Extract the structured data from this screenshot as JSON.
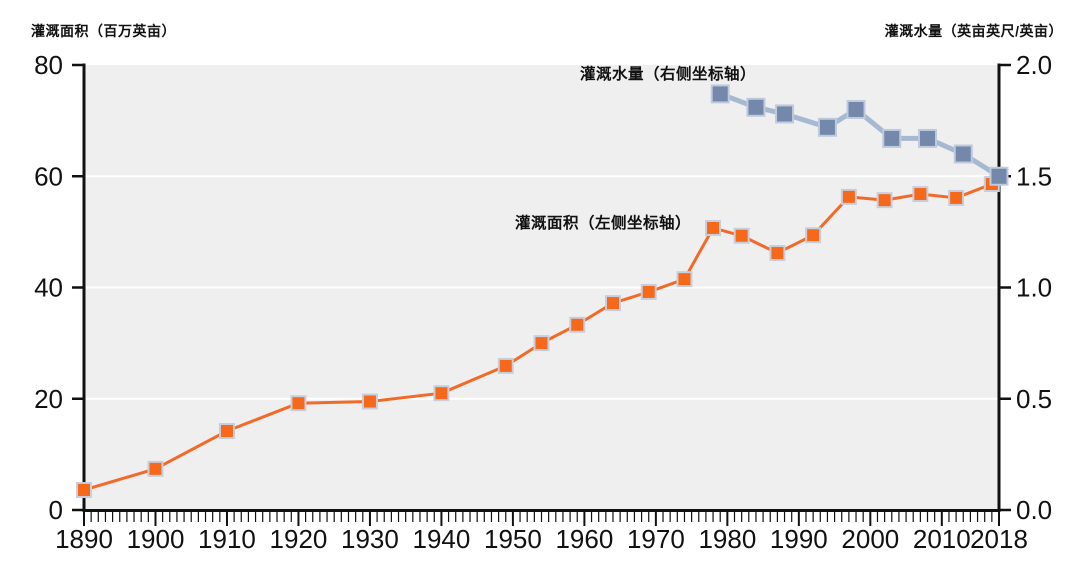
{
  "chart_data": {
    "type": "line",
    "title": "",
    "background": "#ffffff",
    "plot_background": "#efefef",
    "grid": {
      "color": "#ffffff",
      "left_values": [
        20,
        40,
        60
      ],
      "width": 2
    },
    "axis_color": "#111111",
    "tick_label_color": "#111111",
    "x_axis": {
      "range": [
        1890,
        2018
      ],
      "major_ticks": [
        1890,
        1900,
        1910,
        1920,
        1930,
        1940,
        1950,
        1960,
        1970,
        1980,
        1990,
        2000,
        2010,
        2018
      ],
      "minor_tick_step": 1
    },
    "left_axis": {
      "title": "灌溉面积（百万英亩）",
      "range": [
        0,
        80
      ],
      "ticks": [
        0,
        20,
        40,
        60,
        80
      ]
    },
    "right_axis": {
      "title": "灌溉水量（英亩英尺/英亩）",
      "range": [
        0,
        2
      ],
      "ticks": [
        "0.0",
        "0.5",
        "1.0",
        "1.5",
        "2.0"
      ]
    },
    "legend_position": "inline-annotations",
    "series": [
      {
        "name": "灌溉面积（左侧坐标轴）",
        "axis": "left",
        "line_color": "#f26a28",
        "line_width": 3,
        "marker": "square",
        "marker_size": 14,
        "marker_color": "#f7691a",
        "marker_edge": "#c6cfe0",
        "x": [
          1890,
          1900,
          1910,
          1920,
          1930,
          1940,
          1949,
          1954,
          1959,
          1964,
          1969,
          1974,
          1978,
          1982,
          1987,
          1992,
          1997,
          2002,
          2007,
          2012,
          2017
        ],
        "values": [
          3.6,
          7.4,
          14.2,
          19.2,
          19.5,
          21.0,
          25.9,
          30.0,
          33.3,
          37.2,
          39.2,
          41.5,
          50.7,
          49.3,
          46.2,
          49.4,
          56.3,
          55.7,
          56.8,
          56.1,
          58.6
        ]
      },
      {
        "name": "灌溉水量（右侧坐标轴）",
        "axis": "right",
        "line_color": "#a7b8d1",
        "line_width": 5,
        "marker": "square",
        "marker_size": 17,
        "marker_color": "#7388ab",
        "marker_edge": "#bfcadd",
        "x": [
          1979,
          1984,
          1988,
          1994,
          1998,
          2003,
          2008,
          2013,
          2018
        ],
        "values": [
          1.87,
          1.81,
          1.78,
          1.72,
          1.8,
          1.67,
          1.67,
          1.6,
          1.5
        ]
      }
    ]
  }
}
